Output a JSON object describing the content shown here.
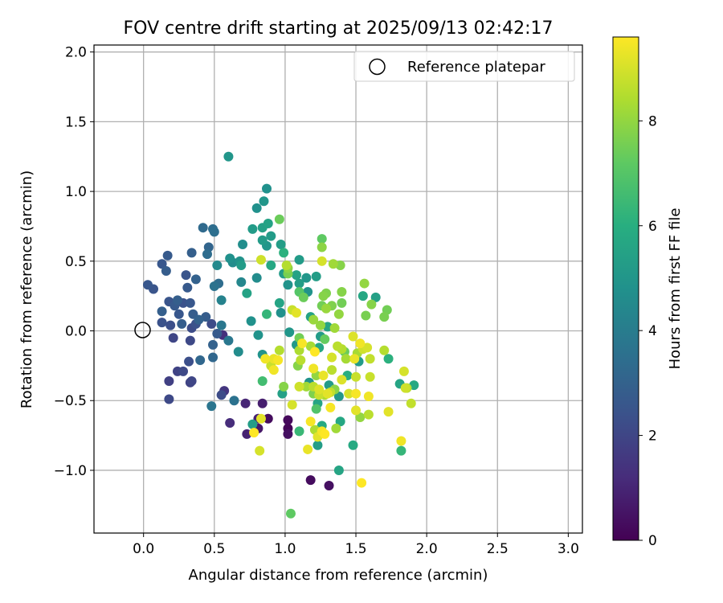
{
  "chart_data": {
    "type": "scatter",
    "title": "FOV centre drift starting at 2025/09/13 02:42:17",
    "xlabel": "Angular distance from reference (arcmin)",
    "ylabel": "Rotation from reference (arcmin)",
    "xlim": [
      -0.35,
      3.1
    ],
    "ylim": [
      -1.45,
      2.05
    ],
    "xticks": [
      0.0,
      0.5,
      1.0,
      1.5,
      2.0,
      2.5,
      3.0
    ],
    "xtick_labels": [
      "0.0",
      "0.5",
      "1.0",
      "1.5",
      "2.0",
      "2.5",
      "3.0"
    ],
    "yticks": [
      -1.0,
      -0.5,
      0.0,
      0.5,
      1.0,
      1.5,
      2.0
    ],
    "ytick_labels": [
      "−1.0",
      "−0.5",
      "0.0",
      "0.5",
      "1.0",
      "1.5",
      "2.0"
    ],
    "grid": true,
    "legend": {
      "placement": "top-right",
      "label": "Reference platepar"
    },
    "reference_point": {
      "x": 0.0,
      "y": 0.0
    },
    "colorbar": {
      "label": "Hours from first FF file",
      "colormap": "viridis",
      "range": [
        0,
        9.6
      ],
      "ticks": [
        0,
        2,
        4,
        6,
        8
      ],
      "tick_labels": [
        "0",
        "2",
        "4",
        "6",
        "8"
      ]
    },
    "points": [
      {
        "x": 0.03,
        "y": 0.33,
        "c": 2.6
      },
      {
        "x": 0.07,
        "y": 0.3,
        "c": 2.5
      },
      {
        "x": 0.13,
        "y": 0.48,
        "c": 2.6
      },
      {
        "x": 0.17,
        "y": 0.54,
        "c": 2.7
      },
      {
        "x": 0.16,
        "y": 0.43,
        "c": 2.8
      },
      {
        "x": 0.13,
        "y": 0.14,
        "c": 2.9
      },
      {
        "x": 0.18,
        "y": 0.21,
        "c": 2.5
      },
      {
        "x": 0.13,
        "y": 0.06,
        "c": 2.4
      },
      {
        "x": 0.19,
        "y": 0.04,
        "c": 2.3
      },
      {
        "x": 0.22,
        "y": 0.18,
        "c": 2.7
      },
      {
        "x": 0.24,
        "y": 0.22,
        "c": 2.9
      },
      {
        "x": 0.21,
        "y": -0.05,
        "c": 2.0
      },
      {
        "x": 0.25,
        "y": 0.12,
        "c": 2.6
      },
      {
        "x": 0.28,
        "y": 0.2,
        "c": 2.4
      },
      {
        "x": 0.27,
        "y": 0.05,
        "c": 2.8
      },
      {
        "x": 0.3,
        "y": 0.4,
        "c": 2.5
      },
      {
        "x": 0.31,
        "y": 0.31,
        "c": 2.7
      },
      {
        "x": 0.34,
        "y": 0.56,
        "c": 2.9
      },
      {
        "x": 0.37,
        "y": 0.37,
        "c": 3.0
      },
      {
        "x": 0.33,
        "y": 0.2,
        "c": 2.6
      },
      {
        "x": 0.35,
        "y": 0.12,
        "c": 2.8
      },
      {
        "x": 0.34,
        "y": 0.02,
        "c": 2.2
      },
      {
        "x": 0.37,
        "y": 0.05,
        "c": 2.4
      },
      {
        "x": 0.33,
        "y": -0.07,
        "c": 2.1
      },
      {
        "x": 0.39,
        "y": 0.08,
        "c": 3.0
      },
      {
        "x": 0.4,
        "y": -0.21,
        "c": 3.2
      },
      {
        "x": 0.42,
        "y": 0.74,
        "c": 3.3
      },
      {
        "x": 0.45,
        "y": 0.55,
        "c": 3.4
      },
      {
        "x": 0.46,
        "y": 0.6,
        "c": 3.1
      },
      {
        "x": 0.44,
        "y": 0.1,
        "c": 2.8
      },
      {
        "x": 0.48,
        "y": 0.05,
        "c": 2.2
      },
      {
        "x": 0.49,
        "y": 0.73,
        "c": 3.4
      },
      {
        "x": 0.5,
        "y": 0.71,
        "c": 3.5
      },
      {
        "x": 0.5,
        "y": 0.32,
        "c": 3.6
      },
      {
        "x": 0.53,
        "y": 0.34,
        "c": 3.4
      },
      {
        "x": 0.52,
        "y": 0.47,
        "c": 4.5
      },
      {
        "x": 0.55,
        "y": 0.22,
        "c": 4.2
      },
      {
        "x": 0.55,
        "y": 0.04,
        "c": 3.8
      },
      {
        "x": 0.49,
        "y": -0.1,
        "c": 3.0
      },
      {
        "x": 0.52,
        "y": -0.02,
        "c": 2.7
      },
      {
        "x": 0.49,
        "y": -0.19,
        "c": 3.2
      },
      {
        "x": 0.48,
        "y": -0.54,
        "c": 3.7
      },
      {
        "x": 0.32,
        "y": -0.22,
        "c": 2.3
      },
      {
        "x": 0.28,
        "y": -0.29,
        "c": 2.1
      },
      {
        "x": 0.24,
        "y": -0.29,
        "c": 1.9
      },
      {
        "x": 0.18,
        "y": -0.36,
        "c": 1.8
      },
      {
        "x": 0.18,
        "y": -0.49,
        "c": 2.1
      },
      {
        "x": 0.33,
        "y": -0.37,
        "c": 1.9
      },
      {
        "x": 0.34,
        "y": -0.36,
        "c": 2.0
      },
      {
        "x": 0.55,
        "y": -0.46,
        "c": 2.2
      },
      {
        "x": 0.57,
        "y": -0.43,
        "c": 1.5
      },
      {
        "x": 0.56,
        "y": -0.03,
        "c": 1.3
      },
      {
        "x": 0.61,
        "y": -0.66,
        "c": 1.2
      },
      {
        "x": 0.64,
        "y": -0.5,
        "c": 3.6
      },
      {
        "x": 0.6,
        "y": 1.25,
        "c": 5.0
      },
      {
        "x": 0.61,
        "y": 0.52,
        "c": 4.8
      },
      {
        "x": 0.63,
        "y": 0.49,
        "c": 4.6
      },
      {
        "x": 0.6,
        "y": -0.07,
        "c": 3.8
      },
      {
        "x": 0.68,
        "y": 0.5,
        "c": 4.9
      },
      {
        "x": 0.69,
        "y": 0.47,
        "c": 5.2
      },
      {
        "x": 0.7,
        "y": 0.62,
        "c": 4.7
      },
      {
        "x": 0.69,
        "y": 0.35,
        "c": 4.4
      },
      {
        "x": 0.67,
        "y": -0.15,
        "c": 4.6
      },
      {
        "x": 0.72,
        "y": -0.52,
        "c": 1.0
      },
      {
        "x": 0.73,
        "y": -0.74,
        "c": 0.9
      },
      {
        "x": 0.73,
        "y": 0.27,
        "c": 5.5
      },
      {
        "x": 0.77,
        "y": 0.73,
        "c": 5.2
      },
      {
        "x": 0.76,
        "y": 0.07,
        "c": 4.8
      },
      {
        "x": 0.77,
        "y": -0.67,
        "c": 5.3
      },
      {
        "x": 0.78,
        "y": -0.73,
        "c": 9.6
      },
      {
        "x": 0.8,
        "y": 0.88,
        "c": 4.8
      },
      {
        "x": 0.8,
        "y": 0.38,
        "c": 4.6
      },
      {
        "x": 0.81,
        "y": -0.03,
        "c": 4.9
      },
      {
        "x": 0.81,
        "y": -0.7,
        "c": 0.6
      },
      {
        "x": 0.81,
        "y": -0.63,
        "c": 0.9
      },
      {
        "x": 0.82,
        "y": -0.86,
        "c": 9.0
      },
      {
        "x": 0.83,
        "y": 0.51,
        "c": 8.9
      },
      {
        "x": 0.84,
        "y": 0.65,
        "c": 5.2
      },
      {
        "x": 0.84,
        "y": 0.74,
        "c": 5.4
      },
      {
        "x": 0.85,
        "y": 0.93,
        "c": 5.0
      },
      {
        "x": 0.87,
        "y": 1.02,
        "c": 4.8
      },
      {
        "x": 0.87,
        "y": 0.61,
        "c": 5.0
      },
      {
        "x": 0.87,
        "y": 0.12,
        "c": 6.3
      },
      {
        "x": 0.84,
        "y": -0.17,
        "c": 4.9
      },
      {
        "x": 0.84,
        "y": -0.36,
        "c": 6.6
      },
      {
        "x": 0.84,
        "y": -0.52,
        "c": 0.8
      },
      {
        "x": 0.83,
        "y": -0.63,
        "c": 9.2
      },
      {
        "x": 0.86,
        "y": -0.2,
        "c": 9.4
      },
      {
        "x": 0.88,
        "y": -0.63,
        "c": 0.3
      },
      {
        "x": 0.88,
        "y": 0.77,
        "c": 5.5
      },
      {
        "x": 0.9,
        "y": 0.68,
        "c": 5.2
      },
      {
        "x": 0.9,
        "y": 0.47,
        "c": 5.7
      },
      {
        "x": 0.9,
        "y": -0.25,
        "c": 8.8
      },
      {
        "x": 0.92,
        "y": -0.2,
        "c": 9.3
      },
      {
        "x": 0.92,
        "y": -0.28,
        "c": 9.4
      },
      {
        "x": 0.95,
        "y": -0.21,
        "c": 9.5
      },
      {
        "x": 0.96,
        "y": 0.8,
        "c": 7.4
      },
      {
        "x": 0.97,
        "y": 0.62,
        "c": 5.3
      },
      {
        "x": 0.96,
        "y": 0.2,
        "c": 5.6
      },
      {
        "x": 0.96,
        "y": -0.14,
        "c": 8.5
      },
      {
        "x": 0.97,
        "y": 0.13,
        "c": 4.8
      },
      {
        "x": 0.99,
        "y": 0.56,
        "c": 6.1
      },
      {
        "x": 0.99,
        "y": 0.41,
        "c": 5.2
      },
      {
        "x": 0.99,
        "y": -0.4,
        "c": 7.8
      },
      {
        "x": 0.98,
        "y": -0.45,
        "c": 5.4
      },
      {
        "x": 1.01,
        "y": 0.47,
        "c": 8.5
      },
      {
        "x": 1.02,
        "y": 0.45,
        "c": 7.9
      },
      {
        "x": 1.02,
        "y": 0.41,
        "c": 7.6
      },
      {
        "x": 1.02,
        "y": 0.33,
        "c": 4.9
      },
      {
        "x": 1.03,
        "y": -0.01,
        "c": 5.0
      },
      {
        "x": 1.02,
        "y": -0.64,
        "c": 0.2
      },
      {
        "x": 1.02,
        "y": -0.7,
        "c": 0.1
      },
      {
        "x": 1.02,
        "y": -0.74,
        "c": 0.4
      },
      {
        "x": 1.04,
        "y": -1.31,
        "c": 7.2
      },
      {
        "x": 1.05,
        "y": 0.15,
        "c": 8.8
      },
      {
        "x": 1.05,
        "y": -0.53,
        "c": 9.0
      },
      {
        "x": 1.08,
        "y": 0.13,
        "c": 9.2
      },
      {
        "x": 1.08,
        "y": 0.4,
        "c": 5.5
      },
      {
        "x": 1.1,
        "y": 0.51,
        "c": 5.2
      },
      {
        "x": 1.1,
        "y": 0.34,
        "c": 5.3
      },
      {
        "x": 1.08,
        "y": -0.1,
        "c": 5.1
      },
      {
        "x": 1.1,
        "y": -0.05,
        "c": 7.5
      },
      {
        "x": 1.1,
        "y": -0.14,
        "c": 8.4
      },
      {
        "x": 1.11,
        "y": -0.21,
        "c": 8.6
      },
      {
        "x": 1.09,
        "y": -0.25,
        "c": 7.8
      },
      {
        "x": 1.1,
        "y": -0.4,
        "c": 8.9
      },
      {
        "x": 1.1,
        "y": -0.72,
        "c": 6.4
      },
      {
        "x": 1.1,
        "y": 0.28,
        "c": 7.0
      },
      {
        "x": 1.13,
        "y": 0.24,
        "c": 7.4
      },
      {
        "x": 1.12,
        "y": -0.09,
        "c": 9.5
      },
      {
        "x": 1.15,
        "y": -0.4,
        "c": 8.2
      },
      {
        "x": 1.16,
        "y": -0.85,
        "c": 9.3
      },
      {
        "x": 1.15,
        "y": 0.38,
        "c": 5.0
      },
      {
        "x": 1.16,
        "y": 0.28,
        "c": 4.9
      },
      {
        "x": 1.17,
        "y": -0.37,
        "c": 4.9
      },
      {
        "x": 1.18,
        "y": -0.11,
        "c": 8.3
      },
      {
        "x": 1.18,
        "y": 0.1,
        "c": 5.5
      },
      {
        "x": 1.18,
        "y": -0.65,
        "c": 9.5
      },
      {
        "x": 1.18,
        "y": -1.07,
        "c": 0.3
      },
      {
        "x": 1.2,
        "y": -0.27,
        "c": 9.4
      },
      {
        "x": 1.2,
        "y": -0.4,
        "c": 8.6
      },
      {
        "x": 1.2,
        "y": -0.45,
        "c": 7.7
      },
      {
        "x": 1.2,
        "y": 0.08,
        "c": 8.1
      },
      {
        "x": 1.21,
        "y": -0.15,
        "c": 9.6
      },
      {
        "x": 1.21,
        "y": -0.71,
        "c": 8.4
      },
      {
        "x": 1.22,
        "y": -0.56,
        "c": 6.9
      },
      {
        "x": 1.22,
        "y": 0.39,
        "c": 5.3
      },
      {
        "x": 1.22,
        "y": -0.32,
        "c": 8.0
      },
      {
        "x": 1.23,
        "y": -0.52,
        "c": 5.6
      },
      {
        "x": 1.23,
        "y": -0.76,
        "c": 9.2
      },
      {
        "x": 1.23,
        "y": -0.82,
        "c": 5.3
      },
      {
        "x": 1.24,
        "y": -0.42,
        "c": 9.1
      },
      {
        "x": 1.24,
        "y": -0.46,
        "c": 8.8
      },
      {
        "x": 1.24,
        "y": -0.12,
        "c": 5.7
      },
      {
        "x": 1.25,
        "y": -0.04,
        "c": 5.2
      },
      {
        "x": 1.25,
        "y": 0.04,
        "c": 8.0
      },
      {
        "x": 1.26,
        "y": 0.66,
        "c": 7.2
      },
      {
        "x": 1.26,
        "y": 0.6,
        "c": 7.9
      },
      {
        "x": 1.26,
        "y": 0.18,
        "c": 7.5
      },
      {
        "x": 1.26,
        "y": 0.5,
        "c": 9.0
      },
      {
        "x": 1.26,
        "y": -0.68,
        "c": 5.8
      },
      {
        "x": 1.26,
        "y": -0.72,
        "c": 9.5
      },
      {
        "x": 1.27,
        "y": 0.25,
        "c": 7.8
      },
      {
        "x": 1.27,
        "y": -0.32,
        "c": 9.3
      },
      {
        "x": 1.28,
        "y": -0.46,
        "c": 8.4
      },
      {
        "x": 1.28,
        "y": -0.74,
        "c": 9.6
      },
      {
        "x": 1.28,
        "y": -0.06,
        "c": 7.3
      },
      {
        "x": 1.29,
        "y": 0.27,
        "c": 7.7
      },
      {
        "x": 1.29,
        "y": 0.16,
        "c": 8.1
      },
      {
        "x": 1.3,
        "y": -0.45,
        "c": 9.2
      },
      {
        "x": 1.3,
        "y": 0.03,
        "c": 5.6
      },
      {
        "x": 1.31,
        "y": -0.39,
        "c": 5.2
      },
      {
        "x": 1.31,
        "y": -1.11,
        "c": 0.4
      },
      {
        "x": 1.32,
        "y": -0.44,
        "c": 8.7
      },
      {
        "x": 1.32,
        "y": -0.55,
        "c": 9.5
      },
      {
        "x": 1.33,
        "y": -0.19,
        "c": 9.0
      },
      {
        "x": 1.33,
        "y": -0.28,
        "c": 8.6
      },
      {
        "x": 1.34,
        "y": 0.48,
        "c": 8.2
      },
      {
        "x": 1.33,
        "y": 0.18,
        "c": 7.7
      },
      {
        "x": 1.35,
        "y": -0.42,
        "c": 7.9
      },
      {
        "x": 1.35,
        "y": 0.02,
        "c": 8.2
      },
      {
        "x": 1.36,
        "y": -0.7,
        "c": 8.2
      },
      {
        "x": 1.37,
        "y": -0.11,
        "c": 8.6
      },
      {
        "x": 1.38,
        "y": -0.47,
        "c": 5.1
      },
      {
        "x": 1.38,
        "y": -1.0,
        "c": 5.6
      },
      {
        "x": 1.38,
        "y": 0.12,
        "c": 8.0
      },
      {
        "x": 1.39,
        "y": 0.47,
        "c": 7.8
      },
      {
        "x": 1.39,
        "y": -0.65,
        "c": 5.7
      },
      {
        "x": 1.4,
        "y": -0.13,
        "c": 8.5
      },
      {
        "x": 1.4,
        "y": -0.35,
        "c": 9.1
      },
      {
        "x": 1.4,
        "y": 0.28,
        "c": 7.8
      },
      {
        "x": 1.4,
        "y": 0.2,
        "c": 7.5
      },
      {
        "x": 1.42,
        "y": -0.15,
        "c": 7.4
      },
      {
        "x": 1.43,
        "y": -0.2,
        "c": 8.3
      },
      {
        "x": 1.44,
        "y": -0.32,
        "c": 6.0
      },
      {
        "x": 1.45,
        "y": -0.45,
        "c": 9.0
      },
      {
        "x": 1.48,
        "y": -0.82,
        "c": 5.8
      },
      {
        "x": 1.48,
        "y": -0.04,
        "c": 9.1
      },
      {
        "x": 1.49,
        "y": -0.2,
        "c": 9.3
      },
      {
        "x": 1.5,
        "y": -0.33,
        "c": 8.8
      },
      {
        "x": 1.5,
        "y": -0.45,
        "c": 9.5
      },
      {
        "x": 1.5,
        "y": -0.57,
        "c": 9.2
      },
      {
        "x": 1.51,
        "y": -0.16,
        "c": 8.3
      },
      {
        "x": 1.52,
        "y": -0.22,
        "c": 5.2
      },
      {
        "x": 1.53,
        "y": -0.09,
        "c": 9.4
      },
      {
        "x": 1.53,
        "y": -0.62,
        "c": 8.0
      },
      {
        "x": 1.54,
        "y": -1.09,
        "c": 9.6
      },
      {
        "x": 1.55,
        "y": -0.13,
        "c": 8.9
      },
      {
        "x": 1.55,
        "y": 0.25,
        "c": 5.7
      },
      {
        "x": 1.56,
        "y": 0.34,
        "c": 8.0
      },
      {
        "x": 1.57,
        "y": 0.11,
        "c": 7.6
      },
      {
        "x": 1.58,
        "y": -0.12,
        "c": 9.0
      },
      {
        "x": 1.59,
        "y": -0.6,
        "c": 8.6
      },
      {
        "x": 1.59,
        "y": -0.47,
        "c": 9.4
      },
      {
        "x": 1.6,
        "y": -0.2,
        "c": 8.7
      },
      {
        "x": 1.6,
        "y": -0.33,
        "c": 8.8
      },
      {
        "x": 1.61,
        "y": 0.19,
        "c": 7.8
      },
      {
        "x": 1.64,
        "y": 0.24,
        "c": 5.4
      },
      {
        "x": 1.7,
        "y": -0.14,
        "c": 8.5
      },
      {
        "x": 1.7,
        "y": 0.1,
        "c": 7.6
      },
      {
        "x": 1.72,
        "y": 0.15,
        "c": 7.5
      },
      {
        "x": 1.73,
        "y": -0.58,
        "c": 9.2
      },
      {
        "x": 1.73,
        "y": -0.2,
        "c": 6.1
      },
      {
        "x": 1.81,
        "y": -0.38,
        "c": 5.6
      },
      {
        "x": 1.82,
        "y": -0.79,
        "c": 9.4
      },
      {
        "x": 1.82,
        "y": -0.86,
        "c": 6.3
      },
      {
        "x": 1.84,
        "y": -0.29,
        "c": 9.0
      },
      {
        "x": 1.85,
        "y": -0.41,
        "c": 8.9
      },
      {
        "x": 1.86,
        "y": -0.41,
        "c": 8.5
      },
      {
        "x": 1.89,
        "y": -0.52,
        "c": 8.7
      },
      {
        "x": 1.91,
        "y": -0.39,
        "c": 5.8
      }
    ]
  }
}
